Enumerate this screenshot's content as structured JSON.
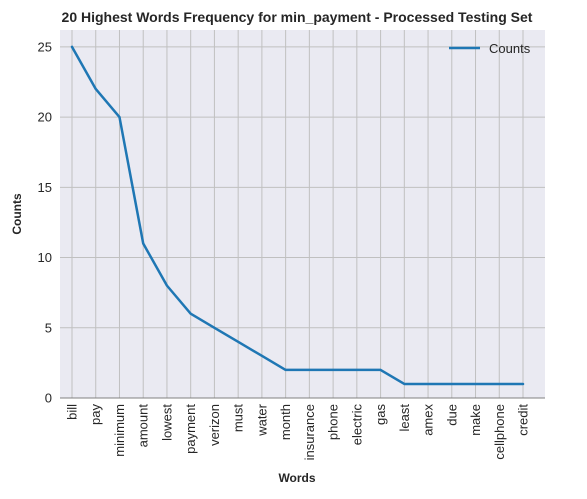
{
  "chart_data": {
    "type": "line",
    "title": "20 Highest Words Frequency for min_payment - Processed Testing Set",
    "xlabel": "Words",
    "ylabel": "Counts",
    "categories": [
      "bill",
      "pay",
      "minimum",
      "amount",
      "lowest",
      "payment",
      "verizon",
      "must",
      "water",
      "month",
      "insurance",
      "phone",
      "electric",
      "gas",
      "least",
      "amex",
      "due",
      "make",
      "cellphone",
      "credit"
    ],
    "series": [
      {
        "name": "Counts",
        "values": [
          25,
          22,
          20,
          11,
          8,
          6,
          5,
          4,
          3,
          2,
          2,
          2,
          2,
          2,
          1,
          1,
          1,
          1,
          1,
          1
        ],
        "color": "#1f77b4"
      }
    ],
    "ylim": [
      0,
      26.2
    ],
    "yticks": [
      0,
      5,
      10,
      15,
      20,
      25
    ],
    "grid": true,
    "legend_position": "top-right",
    "background_color": "#eaeaf2",
    "grid_color": "#c0c0c0"
  }
}
